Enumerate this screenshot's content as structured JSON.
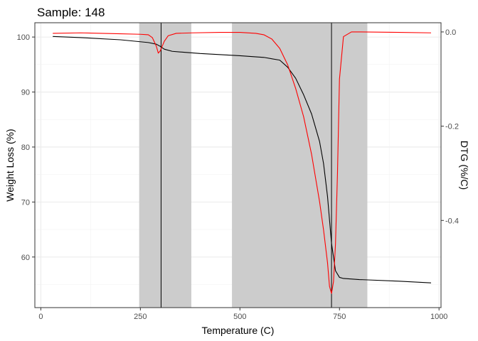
{
  "chart_data": {
    "type": "line",
    "title": "Sample: 148",
    "xlabel": "Temperature (C)",
    "ylabel": "Weight Loss (%)",
    "y2label": "DTG (%/C)",
    "xlim": [
      -15,
      1005
    ],
    "ylim": [
      50.8,
      102.6
    ],
    "y2lim": [
      -0.585,
      0.0195
    ],
    "x_ticks": [
      0,
      250,
      500,
      750,
      1000
    ],
    "y_ticks": [
      60,
      70,
      80,
      90,
      100
    ],
    "y2_ticks": [
      0.0,
      -0.2,
      -0.4
    ],
    "x_tick_labels": [
      "0",
      "250",
      "500",
      "750",
      "1000"
    ],
    "y_tick_labels": [
      "60",
      "70",
      "80",
      "90",
      "100"
    ],
    "y2_tick_labels": [
      "0.0",
      "-0.2",
      "-0.4"
    ],
    "grid": true,
    "shaded_regions": [
      {
        "x_start": 247,
        "x_end": 378,
        "color": "#cccccc"
      },
      {
        "x_start": 480,
        "x_end": 820,
        "color": "#cccccc"
      }
    ],
    "vertical_lines": [
      {
        "x": 302,
        "color": "#000000"
      },
      {
        "x": 730,
        "color": "#000000"
      }
    ],
    "series": [
      {
        "axis": "left",
        "color": "#000000",
        "x": [
          30,
          100,
          200,
          270,
          290,
          300,
          310,
          330,
          400,
          500,
          560,
          600,
          620,
          640,
          660,
          680,
          700,
          710,
          720,
          730,
          740,
          750,
          760,
          800,
          900,
          980
        ],
        "y": [
          100.1,
          99.9,
          99.5,
          99.0,
          98.7,
          98.3,
          97.8,
          97.4,
          97.0,
          96.6,
          96.3,
          95.8,
          94.5,
          92.5,
          89.5,
          86.0,
          81.0,
          77.0,
          71.0,
          62.5,
          57.5,
          56.3,
          56.1,
          55.9,
          55.6,
          55.3
        ]
      },
      {
        "axis": "right",
        "color": "#ff0000",
        "x": [
          30,
          100,
          200,
          250,
          270,
          280,
          290,
          295,
          300,
          310,
          320,
          340,
          380,
          450,
          500,
          540,
          560,
          580,
          600,
          620,
          640,
          660,
          680,
          700,
          710,
          720,
          725,
          730,
          735,
          740,
          745,
          750,
          760,
          780,
          800,
          900,
          980
        ],
        "y": [
          -0.003,
          -0.002,
          -0.004,
          -0.005,
          -0.006,
          -0.012,
          -0.03,
          -0.045,
          -0.04,
          -0.02,
          -0.008,
          -0.003,
          -0.002,
          -0.001,
          -0.001,
          -0.003,
          -0.006,
          -0.015,
          -0.035,
          -0.07,
          -0.12,
          -0.18,
          -0.26,
          -0.36,
          -0.42,
          -0.49,
          -0.54,
          -0.555,
          -0.53,
          -0.45,
          -0.3,
          -0.1,
          -0.01,
          0.0,
          0.0,
          -0.001,
          -0.002
        ]
      }
    ]
  }
}
